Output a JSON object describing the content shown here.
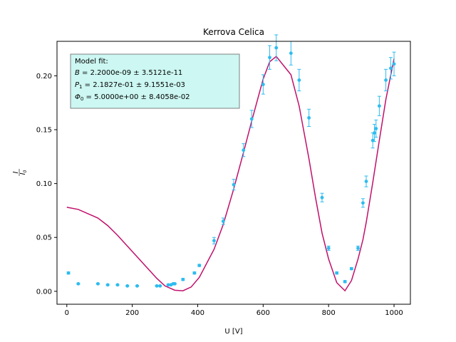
{
  "chart_data": {
    "type": "scatter",
    "title": "Kerrova Celica",
    "xlabel": "U [V]",
    "ylabel_num": "I",
    "ylabel_den": "I0",
    "xlim": [
      -30,
      1050
    ],
    "ylim": [
      -0.012,
      0.232
    ],
    "xticks": [
      0,
      200,
      400,
      600,
      800,
      1000
    ],
    "xtick_labels": [
      "0",
      "200",
      "400",
      "600",
      "800",
      "1000"
    ],
    "yticks": [
      0.0,
      0.05,
      0.1,
      0.15,
      0.2
    ],
    "ytick_labels": [
      "0.00",
      "0.05",
      "0.10",
      "0.15",
      "0.20"
    ],
    "grid": false,
    "series": [
      {
        "kind": "errorbar-points",
        "color": "#2ebcef",
        "x": [
          5,
          35,
          95,
          125,
          155,
          185,
          215,
          275,
          285,
          310,
          318,
          325,
          330,
          355,
          390,
          405,
          450,
          478,
          510,
          540,
          565,
          600,
          620,
          640,
          685,
          710,
          740,
          780,
          800,
          825,
          850,
          870,
          890,
          905,
          915,
          935,
          940,
          945,
          955,
          975,
          990,
          1000
        ],
        "y": [
          0.017,
          0.007,
          0.007,
          0.006,
          0.006,
          0.005,
          0.005,
          0.005,
          0.005,
          0.006,
          0.006,
          0.007,
          0.007,
          0.011,
          0.017,
          0.024,
          0.047,
          0.065,
          0.099,
          0.131,
          0.16,
          0.192,
          0.217,
          0.226,
          0.221,
          0.196,
          0.161,
          0.087,
          0.04,
          0.017,
          0.009,
          0.021,
          0.04,
          0.082,
          0.102,
          0.14,
          0.147,
          0.151,
          0.172,
          0.196,
          0.207,
          0.211
        ],
        "err": [
          0.001,
          0.0005,
          0.0005,
          0.0005,
          0.0005,
          0.0005,
          0.0005,
          0.0005,
          0.0005,
          0.0005,
          0.0005,
          0.0005,
          0.0005,
          0.001,
          0.001,
          0.001,
          0.003,
          0.003,
          0.005,
          0.006,
          0.008,
          0.009,
          0.011,
          0.012,
          0.011,
          0.01,
          0.008,
          0.004,
          0.002,
          0.001,
          0.001,
          0.001,
          0.002,
          0.004,
          0.005,
          0.007,
          0.008,
          0.008,
          0.009,
          0.01,
          0.01,
          0.011
        ]
      },
      {
        "kind": "line",
        "color": "#c0106a",
        "x": [
          0,
          35,
          95,
          125,
          155,
          185,
          215,
          245,
          275,
          300,
          330,
          355,
          380,
          405,
          450,
          478,
          510,
          540,
          565,
          600,
          620,
          640,
          685,
          710,
          740,
          760,
          780,
          800,
          825,
          850,
          870,
          890,
          905,
          915,
          935,
          955,
          975,
          1000
        ],
        "y": [
          0.078,
          0.076,
          0.068,
          0.061,
          0.052,
          0.042,
          0.032,
          0.022,
          0.012,
          0.005,
          0.001,
          0.0005,
          0.004,
          0.013,
          0.039,
          0.062,
          0.095,
          0.129,
          0.158,
          0.197,
          0.213,
          0.218,
          0.201,
          0.172,
          0.123,
          0.087,
          0.054,
          0.03,
          0.008,
          0.0005,
          0.01,
          0.03,
          0.048,
          0.064,
          0.101,
          0.14,
          0.178,
          0.216
        ]
      }
    ],
    "fit_box": {
      "heading": "Model fit:",
      "lines": [
        {
          "sym": "B",
          "sub": "",
          "value": " = 2.2000e-09 ± 3.5121e-11"
        },
        {
          "sym": "P",
          "sub": "1",
          "value": " = 2.1827e-01 ± 9.1551e-03"
        },
        {
          "sym": "Φ",
          "sub": "0",
          "value": " = 5.0000e+00 ± 8.4058e-02"
        }
      ],
      "background": "#ccf7f2",
      "border": "#808080"
    }
  }
}
